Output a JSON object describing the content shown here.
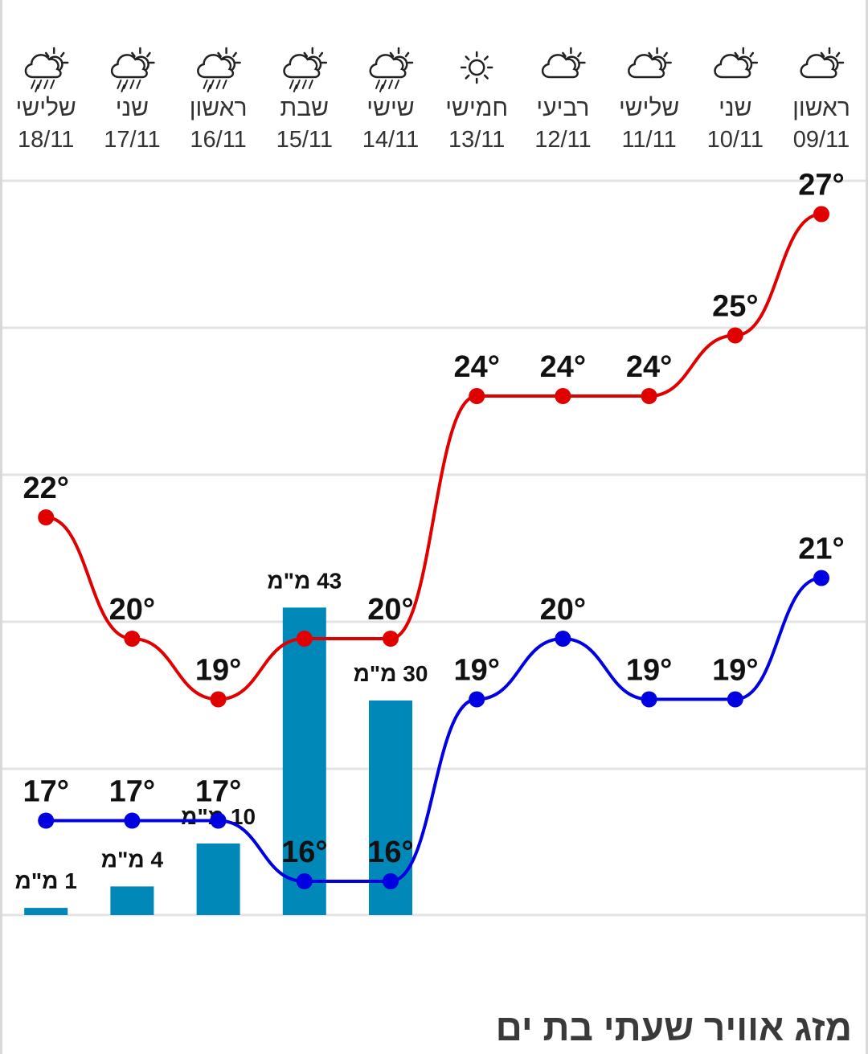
{
  "title": "מזג אוויר שעתי בת ים",
  "chart_data": {
    "type": "line",
    "categories": [
      "09/11",
      "10/11",
      "11/11",
      "12/11",
      "13/11",
      "14/11",
      "15/11",
      "16/11",
      "17/11",
      "18/11"
    ],
    "day_names": [
      "ראשון",
      "שני",
      "שלישי",
      "רביעי",
      "חמישי",
      "שישי",
      "שבת",
      "ראשון",
      "שני",
      "שלישי"
    ],
    "weather_icons": [
      "partly-cloudy-icon",
      "partly-cloudy-icon",
      "partly-cloudy-icon",
      "partly-cloudy-icon",
      "sun-icon",
      "rain-icon",
      "rain-icon",
      "rain-icon",
      "rain-icon",
      "rain-icon"
    ],
    "x_direction": "right-to-left",
    "series": [
      {
        "name": "max",
        "color": "#e00000",
        "values": [
          27,
          25,
          24,
          24,
          24,
          20,
          20,
          19,
          20,
          22
        ]
      },
      {
        "name": "min",
        "color": "#0000e0",
        "values": [
          21,
          19,
          19,
          20,
          19,
          16,
          16,
          17,
          17,
          17
        ]
      }
    ],
    "temp_labels": {
      "max": [
        "27°",
        "25°",
        "24°",
        "24°",
        "24°",
        "20°",
        "",
        "19°",
        "20°",
        "22°"
      ],
      "min": [
        "21°",
        "19°",
        "19°",
        "20°",
        "19°",
        "16°",
        "16°",
        "17°",
        "17°",
        "17°"
      ]
    },
    "bars": {
      "color": "#0088b8",
      "values": [
        null,
        null,
        null,
        null,
        null,
        30,
        43,
        10,
        4,
        1
      ],
      "labels": [
        "",
        "",
        "",
        "",
        "",
        "30 מ\"מ",
        "43 מ\"מ",
        "10 מ\"מ",
        "4 מ\"מ",
        "1 מ\"מ"
      ]
    },
    "grid": true
  }
}
